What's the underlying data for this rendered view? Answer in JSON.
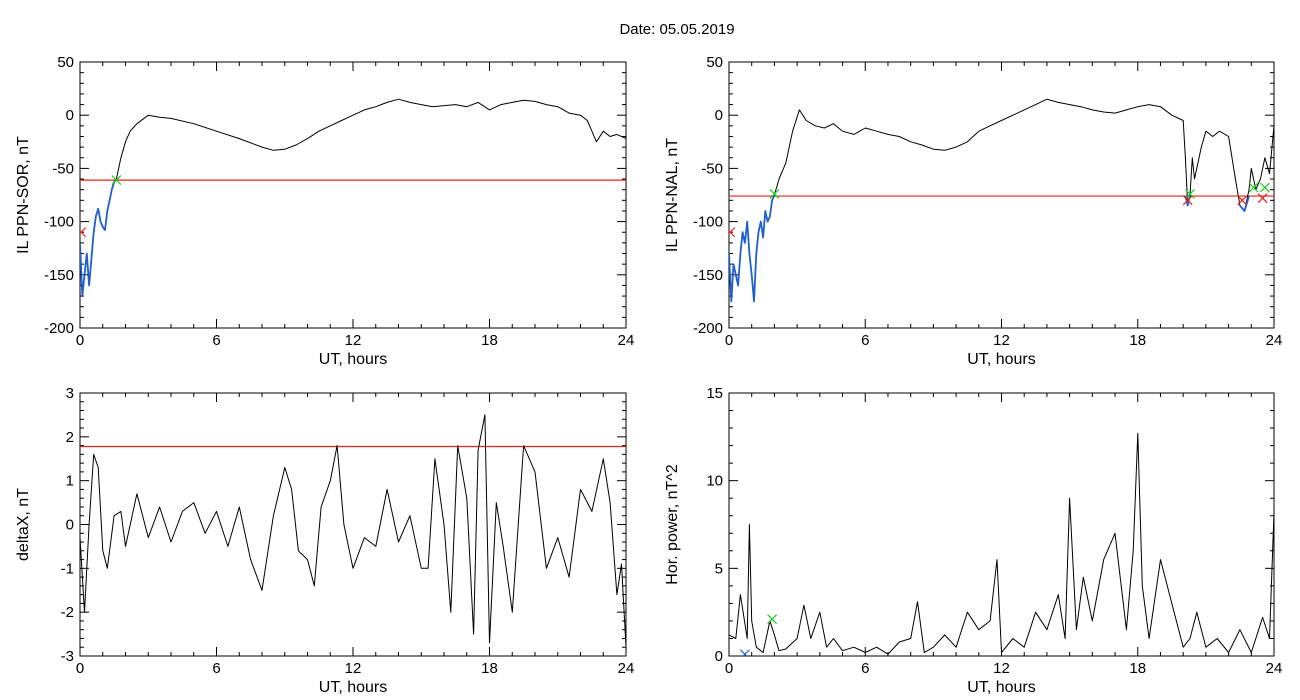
{
  "figure": {
    "title": "Date:  05.05.2019"
  },
  "colors": {
    "trace": "#000000",
    "ae_segment": "#1f5fd0",
    "threshold": "#e8201a",
    "marker_green": "#1ecb1e",
    "marker_red": "#e8201a",
    "marker_blue": "#1f5fd0"
  },
  "chart_data": [
    {
      "type": "line",
      "xlabel": "UT, hours",
      "ylabel": "IL PPN-SOR, nT",
      "xlim": [
        0,
        24
      ],
      "ylim": [
        -200,
        50
      ],
      "xticks": [
        0,
        6,
        12,
        18,
        24
      ],
      "yticks": [
        -200,
        -150,
        -100,
        -50,
        0,
        50
      ],
      "threshold": -61,
      "series": [
        {
          "style": "main",
          "x": [
            0,
            0.1,
            0.2,
            0.3,
            0.4,
            0.5,
            0.6,
            0.7,
            0.8,
            0.9,
            1.0,
            1.1,
            1.2,
            1.3,
            1.4,
            1.5,
            1.6,
            1.8,
            2.0,
            2.2,
            2.5,
            3.0,
            3.5,
            4.0,
            5.0,
            6.0,
            7.0,
            8.0,
            8.5,
            9.0,
            9.5,
            10.0,
            10.5,
            11.0,
            11.5,
            12.0,
            12.5,
            13.0,
            13.5,
            14.0,
            14.5,
            15.0,
            15.5,
            16.0,
            16.5,
            17.0,
            17.5,
            18.0,
            18.5,
            19.0,
            19.5,
            20.0,
            20.5,
            21.0,
            21.5,
            22.0,
            22.3,
            22.5,
            22.7,
            23.0,
            23.3,
            23.6,
            24.0
          ],
          "y": [
            -120,
            -170,
            -150,
            -130,
            -160,
            -135,
            -110,
            -95,
            -88,
            -100,
            -105,
            -108,
            -90,
            -80,
            -70,
            -63,
            -60,
            -40,
            -25,
            -15,
            -8,
            0,
            -2,
            -3,
            -8,
            -15,
            -22,
            -30,
            -33,
            -32,
            -28,
            -22,
            -15,
            -10,
            -5,
            0,
            5,
            8,
            12,
            15,
            12,
            10,
            8,
            9,
            10,
            8,
            12,
            5,
            10,
            12,
            14,
            13,
            10,
            8,
            2,
            0,
            -5,
            -15,
            -25,
            -15,
            -20,
            -18,
            -22
          ]
        },
        {
          "style": "segment",
          "x": [
            0,
            0.1,
            0.2,
            0.3,
            0.4,
            0.5,
            0.6,
            0.7,
            0.8,
            0.9,
            1.0,
            1.1,
            1.2,
            1.3,
            1.4,
            1.5,
            1.6
          ],
          "y": [
            -120,
            -170,
            -150,
            -130,
            -160,
            -135,
            -110,
            -95,
            -88,
            -100,
            -105,
            -108,
            -90,
            -80,
            -70,
            -63,
            -60
          ]
        }
      ],
      "markers": [
        {
          "type": "x",
          "color": "marker_green",
          "x": 1.6,
          "y": -61
        },
        {
          "type": "x",
          "color": "marker_red",
          "x": 0.05,
          "y": -110
        }
      ]
    },
    {
      "type": "line",
      "xlabel": "UT, hours",
      "ylabel": "IL PPN-NAL, nT",
      "xlim": [
        0,
        24
      ],
      "ylim": [
        -200,
        50
      ],
      "xticks": [
        0,
        6,
        12,
        18,
        24
      ],
      "yticks": [
        -200,
        -150,
        -100,
        -50,
        0,
        50
      ],
      "threshold": -76,
      "series": [
        {
          "style": "main",
          "x": [
            0,
            0.1,
            0.2,
            0.3,
            0.4,
            0.5,
            0.6,
            0.7,
            0.8,
            0.9,
            1.0,
            1.1,
            1.2,
            1.3,
            1.4,
            1.5,
            1.6,
            1.7,
            1.8,
            1.9,
            2.0,
            2.2,
            2.5,
            2.8,
            3.1,
            3.4,
            3.8,
            4.2,
            4.6,
            5.0,
            5.5,
            6.0,
            6.5,
            7.0,
            7.5,
            8.0,
            8.5,
            9.0,
            9.5,
            10.0,
            10.5,
            11.0,
            11.5,
            12.0,
            12.5,
            13.0,
            13.5,
            14.0,
            14.5,
            15.0,
            15.5,
            16.0,
            16.5,
            17.0,
            17.5,
            18.0,
            18.5,
            19.0,
            19.5,
            20.0,
            20.1,
            20.2,
            20.3,
            20.4,
            20.5,
            20.8,
            21.0,
            21.3,
            21.6,
            22.0,
            22.3,
            22.5,
            22.7,
            22.9,
            23.0,
            23.2,
            23.4,
            23.6,
            23.8,
            24.0
          ],
          "y": [
            -130,
            -175,
            -140,
            -150,
            -160,
            -130,
            -110,
            -120,
            -100,
            -130,
            -150,
            -175,
            -130,
            -110,
            -100,
            -115,
            -90,
            -100,
            -95,
            -80,
            -75,
            -60,
            -45,
            -15,
            5,
            -5,
            -10,
            -12,
            -8,
            -15,
            -18,
            -12,
            -15,
            -18,
            -20,
            -25,
            -28,
            -32,
            -33,
            -30,
            -25,
            -15,
            -10,
            -5,
            0,
            5,
            10,
            15,
            12,
            10,
            8,
            5,
            3,
            2,
            5,
            8,
            10,
            8,
            0,
            -5,
            -40,
            -85,
            -75,
            -40,
            -60,
            -30,
            -15,
            -20,
            -15,
            -20,
            -60,
            -85,
            -90,
            -70,
            -50,
            -70,
            -60,
            -40,
            -55,
            -10
          ]
        },
        {
          "style": "segment",
          "x": [
            0,
            0.1,
            0.2,
            0.3,
            0.4,
            0.5,
            0.6,
            0.7,
            0.8,
            0.9,
            1.0,
            1.1,
            1.2,
            1.3,
            1.4,
            1.5,
            1.6,
            1.7,
            1.8,
            1.9,
            2.0
          ],
          "y": [
            -130,
            -175,
            -140,
            -150,
            -160,
            -130,
            -110,
            -120,
            -100,
            -130,
            -150,
            -175,
            -130,
            -110,
            -100,
            -115,
            -90,
            -100,
            -95,
            -80,
            -75
          ]
        },
        {
          "style": "segment",
          "x": [
            20.1,
            20.2,
            20.3,
            20.4
          ],
          "y": [
            -76,
            -85,
            -75,
            -76
          ]
        },
        {
          "style": "segment",
          "x": [
            22.5,
            22.7,
            22.9
          ],
          "y": [
            -85,
            -90,
            -76
          ]
        }
      ],
      "markers": [
        {
          "type": "x",
          "color": "marker_green",
          "x": 2.0,
          "y": -74
        },
        {
          "type": "x",
          "color": "marker_green",
          "x": 20.3,
          "y": -74
        },
        {
          "type": "x",
          "color": "marker_red",
          "x": 20.2,
          "y": -80
        },
        {
          "type": "x",
          "color": "marker_green",
          "x": 23.1,
          "y": -68
        },
        {
          "type": "x",
          "color": "marker_red",
          "x": 22.6,
          "y": -80
        },
        {
          "type": "x",
          "color": "marker_green",
          "x": 23.6,
          "y": -68
        },
        {
          "type": "x",
          "color": "marker_red",
          "x": 23.5,
          "y": -78
        },
        {
          "type": "x",
          "color": "marker_red",
          "x": 0.05,
          "y": -110
        }
      ]
    },
    {
      "type": "line",
      "xlabel": "UT, hours",
      "ylabel": "deltaX, nT",
      "xlim": [
        0,
        24
      ],
      "ylim": [
        -3,
        3
      ],
      "xticks": [
        0,
        6,
        12,
        18,
        24
      ],
      "yticks": [
        -3,
        -2,
        -1,
        0,
        1,
        2,
        3
      ],
      "threshold": 1.78,
      "series": [
        {
          "style": "main",
          "x": [
            0,
            0.2,
            0.4,
            0.6,
            0.8,
            1.0,
            1.2,
            1.5,
            1.8,
            2.0,
            2.5,
            3.0,
            3.5,
            4.0,
            4.5,
            5.0,
            5.5,
            6.0,
            6.5,
            7.0,
            7.5,
            8.0,
            8.5,
            9.0,
            9.3,
            9.6,
            10.0,
            10.3,
            10.6,
            11.0,
            11.3,
            11.6,
            12.0,
            12.5,
            13.0,
            13.5,
            14.0,
            14.5,
            15.0,
            15.3,
            15.6,
            16.0,
            16.3,
            16.6,
            17.0,
            17.3,
            17.5,
            17.8,
            18.0,
            18.3,
            18.6,
            19.0,
            19.5,
            20.0,
            20.5,
            21.0,
            21.5,
            22.0,
            22.5,
            23.0,
            23.3,
            23.6,
            23.8,
            24.0
          ],
          "y": [
            -0.3,
            -2.0,
            0.0,
            1.6,
            1.3,
            -0.6,
            -1.0,
            0.2,
            0.3,
            -0.5,
            0.7,
            -0.3,
            0.4,
            -0.4,
            0.3,
            0.5,
            -0.2,
            0.3,
            -0.5,
            0.4,
            -0.8,
            -1.5,
            0.2,
            1.3,
            0.8,
            -0.6,
            -0.8,
            -1.4,
            0.4,
            1.0,
            1.8,
            0.0,
            -1.0,
            -0.3,
            -0.5,
            0.8,
            -0.4,
            0.2,
            -1.0,
            -1.0,
            1.5,
            0.0,
            -2.0,
            1.8,
            0.6,
            -2.5,
            1.7,
            2.5,
            -2.7,
            0.5,
            -0.5,
            -2.0,
            1.8,
            1.2,
            -1.0,
            -0.3,
            -1.2,
            0.8,
            0.3,
            1.5,
            0.5,
            -1.6,
            -0.9,
            -2.8
          ]
        }
      ],
      "markers": []
    },
    {
      "type": "line",
      "xlabel": "UT, hours",
      "ylabel": "Hor. power, nT^2",
      "xlim": [
        0,
        24
      ],
      "ylim": [
        0,
        15
      ],
      "xticks": [
        0,
        6,
        12,
        18,
        24
      ],
      "yticks": [
        0,
        5,
        10,
        15
      ],
      "series": [
        {
          "style": "main",
          "x": [
            0,
            0.3,
            0.5,
            0.8,
            0.9,
            1.0,
            1.2,
            1.5,
            1.8,
            2.0,
            2.2,
            2.5,
            3.0,
            3.3,
            3.6,
            4.0,
            4.3,
            4.6,
            5.0,
            5.5,
            6.0,
            6.5,
            7.0,
            7.5,
            8.0,
            8.3,
            8.6,
            9.0,
            9.5,
            10.0,
            10.5,
            11.0,
            11.5,
            11.8,
            12.0,
            12.5,
            13.0,
            13.5,
            14.0,
            14.5,
            14.8,
            15.0,
            15.3,
            15.6,
            16.0,
            16.5,
            17.0,
            17.5,
            17.8,
            18.0,
            18.2,
            18.5,
            19.0,
            19.5,
            20.0,
            20.3,
            20.6,
            21.0,
            21.5,
            22.0,
            22.5,
            23.0,
            23.5,
            23.8,
            24.0
          ],
          "y": [
            1.2,
            1.0,
            3.5,
            1.0,
            7.5,
            2.0,
            0.5,
            0.2,
            2.0,
            1.2,
            0.3,
            0.4,
            1.0,
            2.9,
            1.0,
            2.5,
            0.5,
            1.0,
            0.3,
            0.5,
            0.2,
            0.5,
            0.1,
            0.8,
            1.0,
            3.1,
            0.2,
            0.5,
            1.2,
            0.5,
            2.5,
            1.5,
            2.0,
            5.5,
            0.2,
            1.0,
            0.5,
            2.5,
            1.5,
            3.5,
            1.0,
            9.0,
            1.5,
            4.5,
            2.0,
            5.5,
            7.0,
            1.5,
            6.0,
            12.7,
            4.0,
            1.0,
            5.5,
            3.0,
            0.5,
            1.0,
            2.5,
            0.5,
            1.0,
            0.2,
            1.5,
            0.2,
            2.2,
            1.0,
            8.2
          ]
        }
      ],
      "markers": [
        {
          "type": "x",
          "color": "marker_green",
          "x": 1.9,
          "y": 2.1
        },
        {
          "type": "x",
          "color": "marker_blue",
          "x": 0.7,
          "y": 0.1
        }
      ]
    }
  ]
}
